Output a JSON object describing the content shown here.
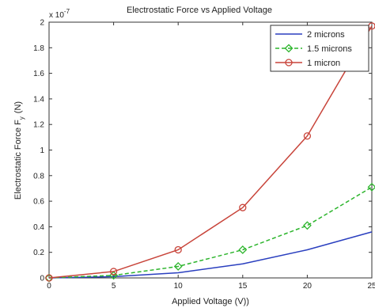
{
  "chart_data": {
    "type": "line",
    "title": "Electrostatic Force vs Applied Voltage",
    "xlabel": "Applied Voltage (V))",
    "ylabel_main": "Electrostatic Force F",
    "ylabel_sub": "y",
    "ylabel_unit": "(N)",
    "y_multiplier_base": "x 10",
    "y_multiplier_exp": "-7",
    "xlim": [
      0,
      25
    ],
    "ylim": [
      0,
      2
    ],
    "x_ticks": [
      0,
      5,
      10,
      15,
      20,
      25
    ],
    "y_ticks": [
      0,
      0.2,
      0.4,
      0.6,
      0.8,
      1,
      1.2,
      1.4,
      1.6,
      1.8,
      2
    ],
    "x_tick_labels": [
      "0",
      "5",
      "10",
      "15",
      "20",
      "25"
    ],
    "y_tick_labels": [
      "0",
      "0.2",
      "0.4",
      "0.6",
      "0.8",
      "1",
      "1.2",
      "1.4",
      "1.6",
      "1.8",
      "2"
    ],
    "grid": false,
    "legend_position": "top-right",
    "x": [
      0,
      5,
      10,
      15,
      20,
      25
    ],
    "series": [
      {
        "name": "2 microns",
        "color": "#2a3fbf",
        "style": "solid",
        "marker": "none",
        "values": [
          0,
          0.01,
          0.04,
          0.11,
          0.22,
          0.36
        ]
      },
      {
        "name": "1.5 microns",
        "color": "#2db52d",
        "style": "dashed",
        "marker": "diamond",
        "values": [
          0,
          0.02,
          0.09,
          0.22,
          0.41,
          0.71
        ]
      },
      {
        "name": "1 micron",
        "color": "#c8443a",
        "style": "solid",
        "marker": "circle",
        "values": [
          0,
          0.05,
          0.22,
          0.55,
          1.11,
          1.97
        ]
      }
    ]
  }
}
